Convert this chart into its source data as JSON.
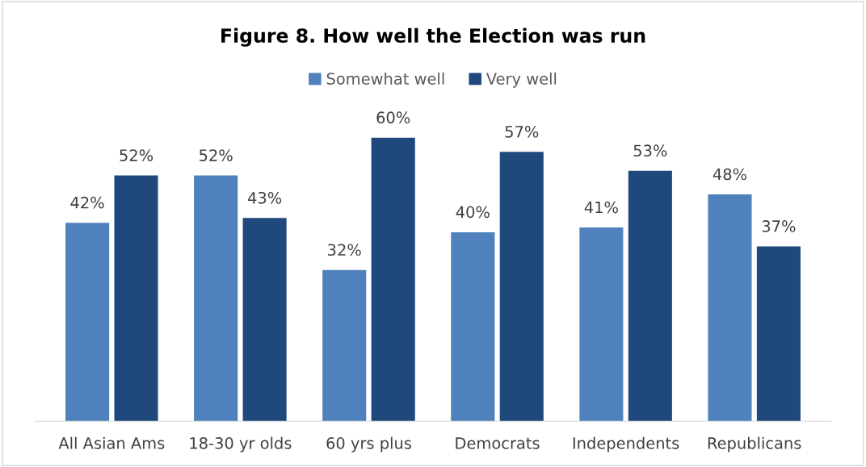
{
  "chart_data": {
    "type": "bar",
    "title": "Figure 8. How well the Election was run",
    "categories": [
      "All Asian Ams",
      "18-30 yr olds",
      "60 yrs plus",
      "Democrats",
      "Independents",
      "Republicans"
    ],
    "series": [
      {
        "name": "Somewhat well",
        "color": "#4f81bd",
        "values": [
          42,
          52,
          32,
          40,
          41,
          48
        ],
        "value_labels": [
          "42%",
          "52%",
          "32%",
          "40%",
          "41%",
          "48%"
        ]
      },
      {
        "name": "Very well",
        "color": "#1f497d",
        "values": [
          52,
          43,
          60,
          57,
          53,
          37
        ],
        "value_labels": [
          "52%",
          "43%",
          "60%",
          "57%",
          "53%",
          "37%"
        ]
      }
    ],
    "legend": "top",
    "grid": false
  }
}
